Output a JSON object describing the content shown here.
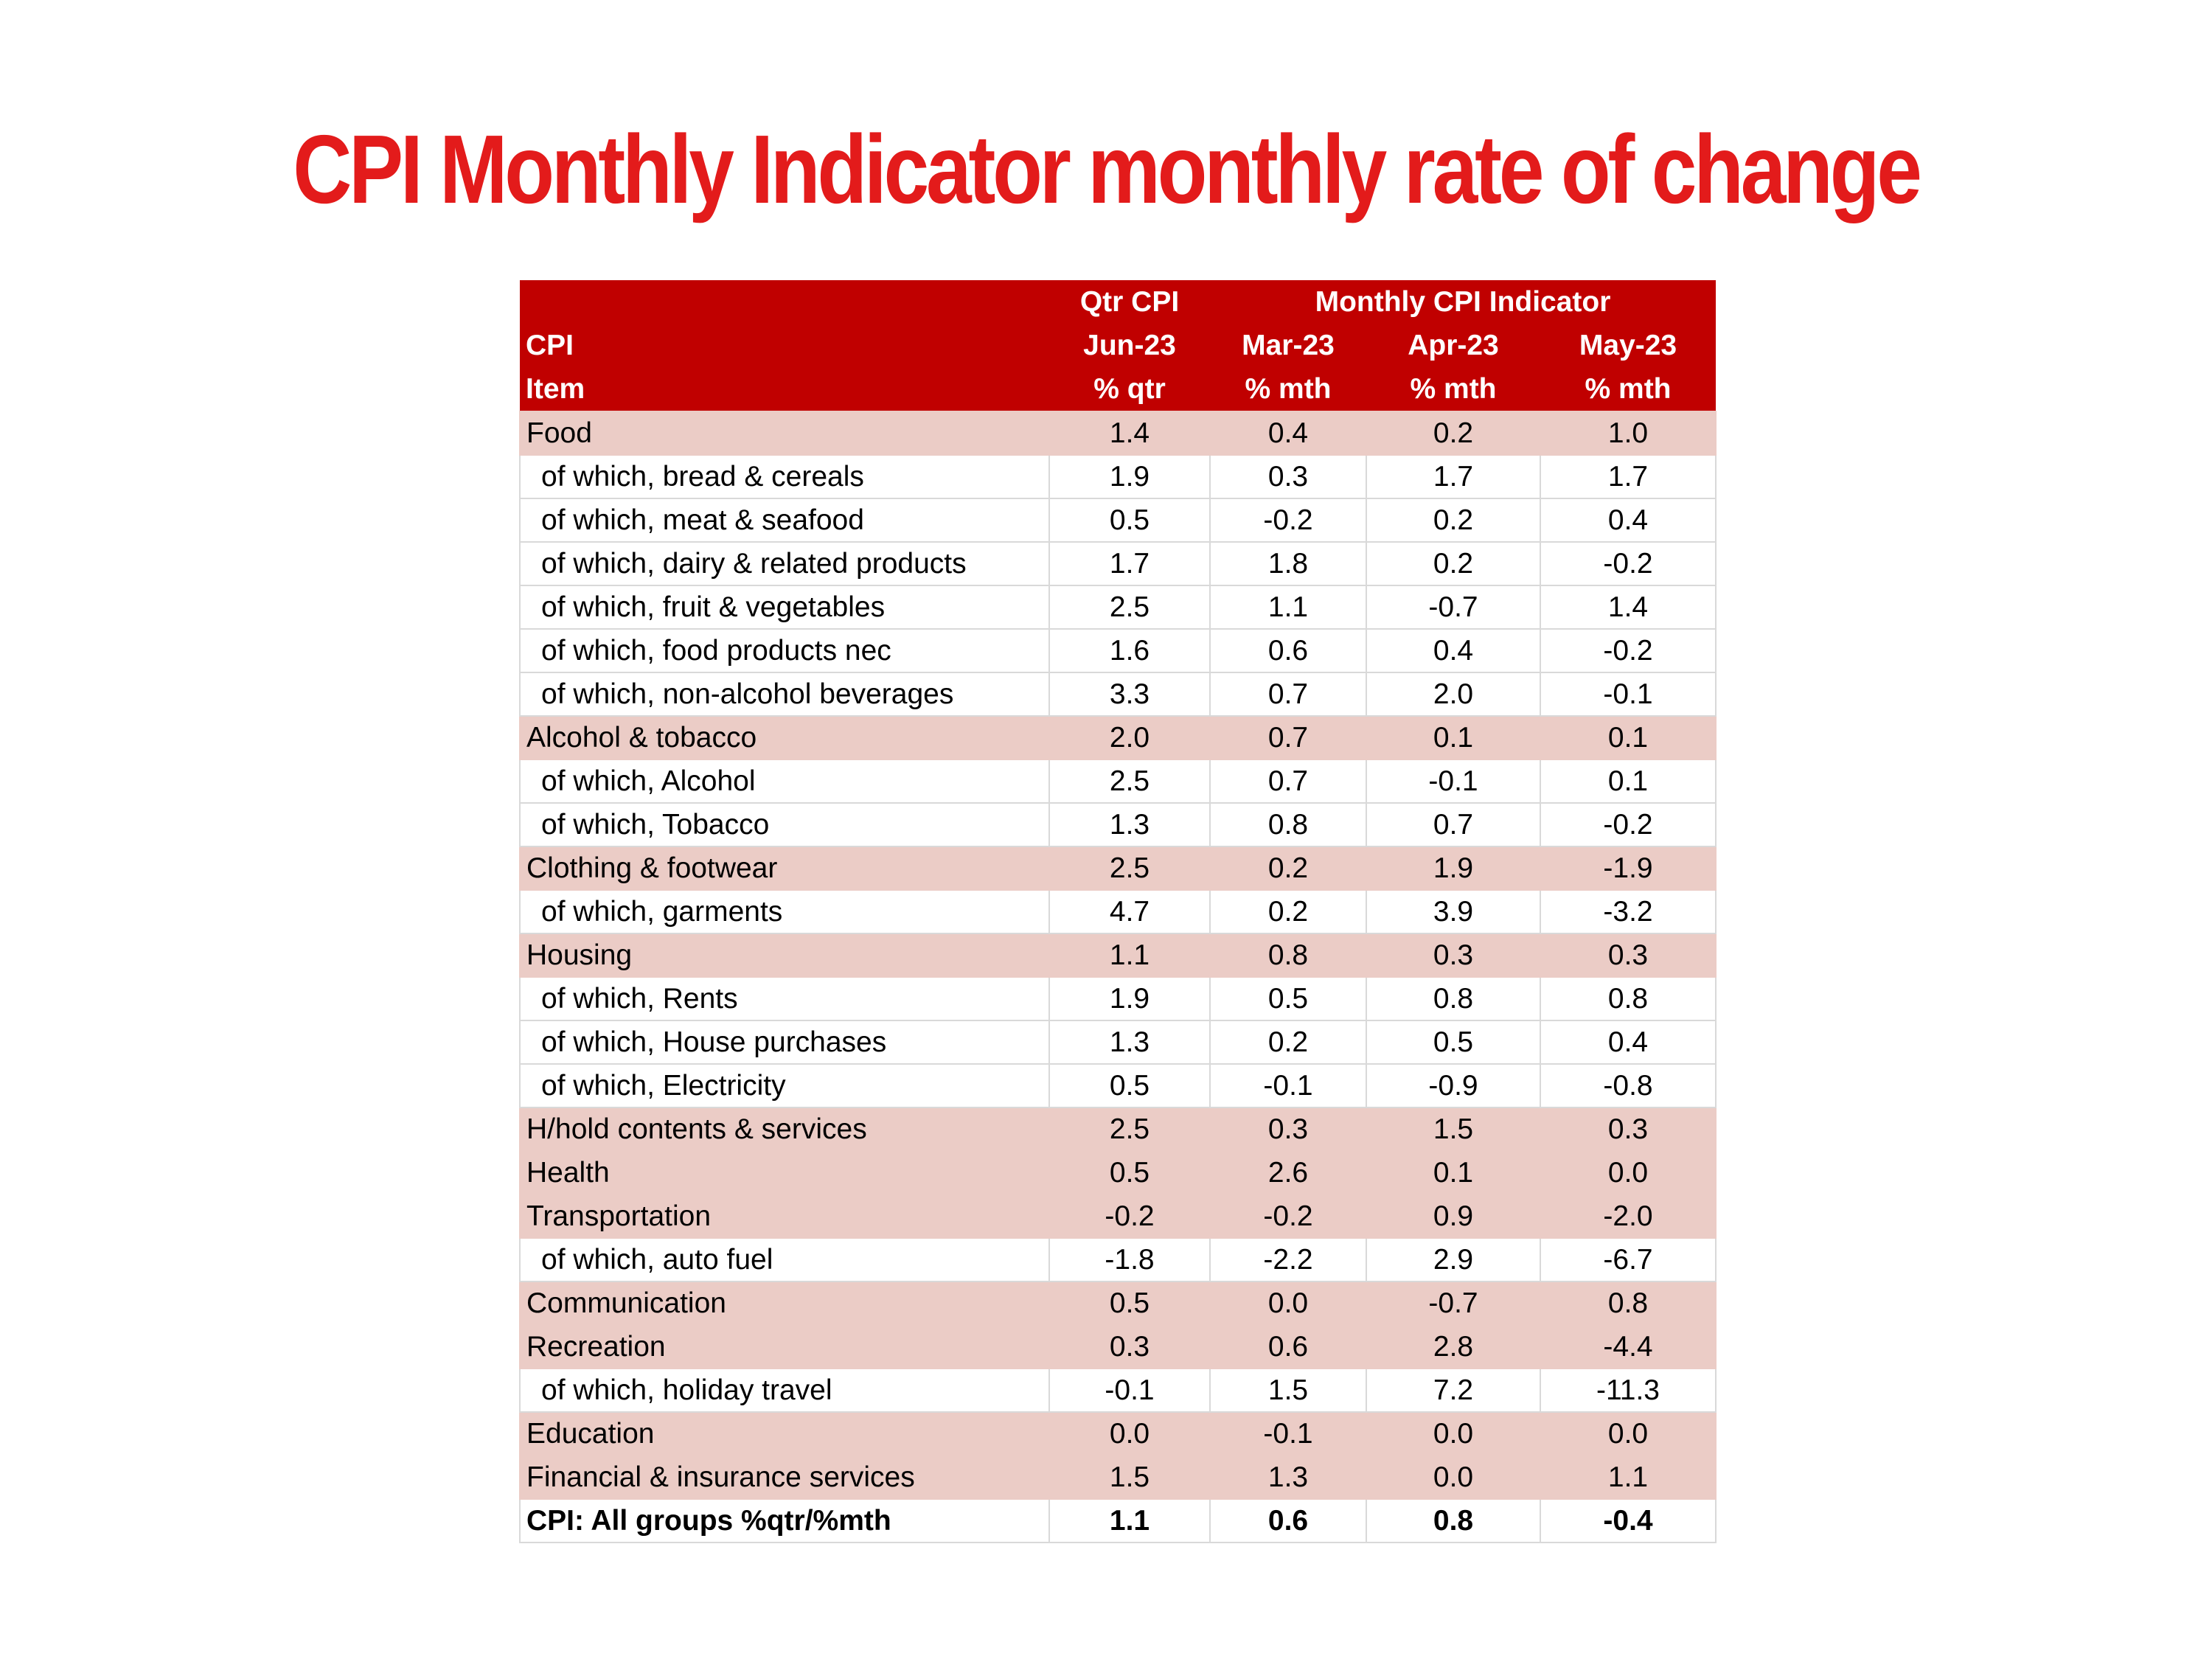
{
  "title": "CPI Monthly Indicator monthly rate of change",
  "colors": {
    "title": "#e31b1b",
    "header_bg": "#c00000",
    "group_row_bg": "#ebccc6",
    "grid": "#d9d9d9"
  },
  "table": {
    "header": {
      "row1": {
        "col1": "",
        "qtr": "Qtr CPI",
        "monthly": "Monthly CPI Indicator"
      },
      "row2": {
        "col1": "CPI",
        "qtr": "Jun-23",
        "m1": "Mar-23",
        "m2": "Apr-23",
        "m3": "May-23"
      },
      "row3": {
        "col1": "Item",
        "qtr": "% qtr",
        "m1": "% mth",
        "m2": "% mth",
        "m3": "% mth"
      }
    },
    "rows": [
      {
        "item": "Food",
        "qtr": "1.4",
        "m1": "0.4",
        "m2": "0.2",
        "m3": "1.0"
      },
      {
        "item": "of which, bread & cereals",
        "qtr": "1.9",
        "m1": "0.3",
        "m2": "1.7",
        "m3": "1.7"
      },
      {
        "item": "of which, meat & seafood",
        "qtr": "0.5",
        "m1": "-0.2",
        "m2": "0.2",
        "m3": "0.4"
      },
      {
        "item": "of which, dairy & related products",
        "qtr": "1.7",
        "m1": "1.8",
        "m2": "0.2",
        "m3": "-0.2"
      },
      {
        "item": "of which, fruit & vegetables",
        "qtr": "2.5",
        "m1": "1.1",
        "m2": "-0.7",
        "m3": "1.4"
      },
      {
        "item": "of which, food products nec",
        "qtr": "1.6",
        "m1": "0.6",
        "m2": "0.4",
        "m3": "-0.2"
      },
      {
        "item": "of which, non-alcohol beverages",
        "qtr": "3.3",
        "m1": "0.7",
        "m2": "2.0",
        "m3": "-0.1"
      },
      {
        "item": "Alcohol & tobacco",
        "qtr": "2.0",
        "m1": "0.7",
        "m2": "0.1",
        "m3": "0.1"
      },
      {
        "item": "of which, Alcohol",
        "qtr": "2.5",
        "m1": "0.7",
        "m2": "-0.1",
        "m3": "0.1"
      },
      {
        "item": "of which, Tobacco",
        "qtr": "1.3",
        "m1": "0.8",
        "m2": "0.7",
        "m3": "-0.2"
      },
      {
        "item": "Clothing & footwear",
        "qtr": "2.5",
        "m1": "0.2",
        "m2": "1.9",
        "m3": "-1.9"
      },
      {
        "item": "of which, garments",
        "qtr": "4.7",
        "m1": "0.2",
        "m2": "3.9",
        "m3": "-3.2"
      },
      {
        "item": "Housing",
        "qtr": "1.1",
        "m1": "0.8",
        "m2": "0.3",
        "m3": "0.3"
      },
      {
        "item": "of which, Rents",
        "qtr": "1.9",
        "m1": "0.5",
        "m2": "0.8",
        "m3": "0.8"
      },
      {
        "item": "of which, House purchases",
        "qtr": "1.3",
        "m1": "0.2",
        "m2": "0.5",
        "m3": "0.4"
      },
      {
        "item": "of which, Electricity",
        "qtr": "0.5",
        "m1": "-0.1",
        "m2": "-0.9",
        "m3": "-0.8"
      },
      {
        "item": "H/hold contents & services",
        "qtr": "2.5",
        "m1": "0.3",
        "m2": "1.5",
        "m3": "0.3"
      },
      {
        "item": "Health",
        "qtr": "0.5",
        "m1": "2.6",
        "m2": "0.1",
        "m3": "0.0"
      },
      {
        "item": "Transportation",
        "qtr": "-0.2",
        "m1": "-0.2",
        "m2": "0.9",
        "m3": "-2.0"
      },
      {
        "item": "of which, auto fuel",
        "qtr": "-1.8",
        "m1": "-2.2",
        "m2": "2.9",
        "m3": "-6.7"
      },
      {
        "item": "Communication",
        "qtr": "0.5",
        "m1": "0.0",
        "m2": "-0.7",
        "m3": "0.8"
      },
      {
        "item": "Recreation",
        "qtr": "0.3",
        "m1": "0.6",
        "m2": "2.8",
        "m3": "-4.4"
      },
      {
        "item": "of which, holiday travel",
        "qtr": "-0.1",
        "m1": "1.5",
        "m2": "7.2",
        "m3": "-11.3"
      },
      {
        "item": "Education",
        "qtr": "0.0",
        "m1": "-0.1",
        "m2": "0.0",
        "m3": "0.0"
      },
      {
        "item": "Financial & insurance services",
        "qtr": "1.5",
        "m1": "1.3",
        "m2": "0.0",
        "m3": "1.1"
      }
    ],
    "total": {
      "item": "CPI: All groups %qtr/%mth",
      "qtr": "1.1",
      "m1": "0.6",
      "m2": "0.8",
      "m3": "-0.4"
    }
  }
}
